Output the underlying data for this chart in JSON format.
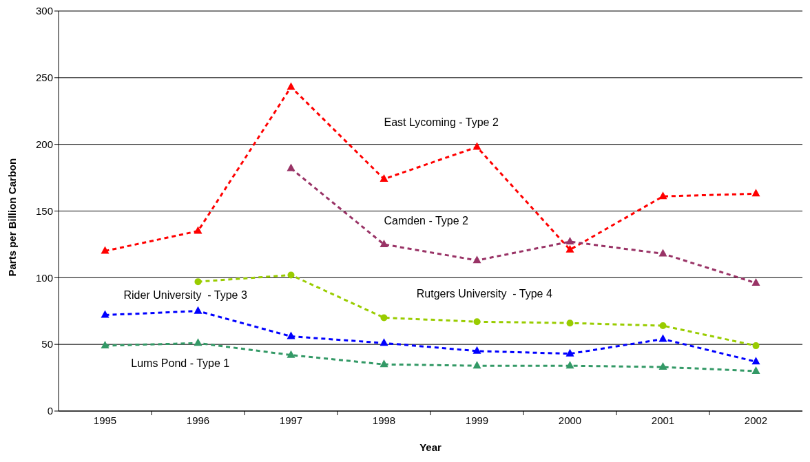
{
  "chart_data": {
    "type": "line",
    "xlabel": "Year",
    "ylabel": "Parts per Billion Carbon",
    "categories": [
      "1995",
      "1996",
      "1997",
      "1998",
      "1999",
      "2000",
      "2001",
      "2002"
    ],
    "ylim": [
      0,
      300
    ],
    "yticks": [
      0,
      50,
      100,
      150,
      200,
      250,
      300
    ],
    "grid": "y",
    "line_style": "dashed",
    "marker": "triangle",
    "series": [
      {
        "name": "East Lycoming - Type 2",
        "color": "#ff0000",
        "values": [
          120,
          135,
          243,
          174,
          198,
          121,
          161,
          163
        ]
      },
      {
        "name": "Camden - Type 2",
        "color": "#993366",
        "values": [
          null,
          null,
          182,
          125,
          113,
          127,
          118,
          96
        ]
      },
      {
        "name": "Rutgers University  - Type 4",
        "color": "#99cc00",
        "marker": "circle",
        "values": [
          null,
          97,
          102,
          70,
          67,
          66,
          64,
          49
        ]
      },
      {
        "name": "Rider University  - Type 3",
        "color": "#0000ff",
        "values": [
          72,
          75,
          56,
          51,
          45,
          43,
          54,
          37
        ]
      },
      {
        "name": "Lums Pond - Type 1",
        "color": "#339966",
        "values": [
          49,
          51,
          42,
          35,
          34,
          34,
          33,
          30
        ]
      }
    ]
  }
}
